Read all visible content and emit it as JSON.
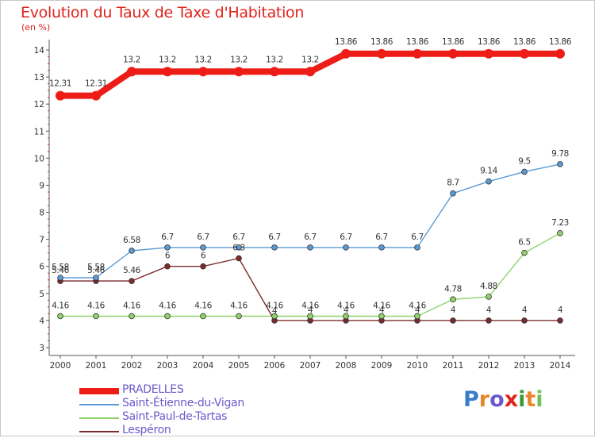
{
  "title": "Evolution du Taux de Taxe d'Habitation",
  "unit": "(en %)",
  "brand": {
    "text": "Proxiti",
    "colors": [
      "#3a7cc9",
      "#e8862b",
      "#6a5acd",
      "#e0231c",
      "#3a9a3a",
      "#e8862b",
      "#6fc05a"
    ]
  },
  "chart_data": {
    "type": "line",
    "x": [
      2000,
      2001,
      2002,
      2003,
      2004,
      2005,
      2006,
      2007,
      2008,
      2009,
      2010,
      2011,
      2012,
      2013,
      2014
    ],
    "ylim": [
      3,
      14
    ],
    "yticks": [
      3,
      4,
      5,
      6,
      7,
      8,
      9,
      10,
      11,
      12,
      13,
      14
    ],
    "grid": false,
    "legend": "bottom-left",
    "series": [
      {
        "name": "PRADELLES",
        "color": "#ee1c16",
        "values": [
          12.31,
          12.31,
          13.2,
          13.2,
          13.2,
          13.2,
          13.2,
          13.2,
          13.86,
          13.86,
          13.86,
          13.86,
          13.86,
          13.86,
          13.86
        ],
        "labels": [
          "12.31",
          "12.31",
          "13.2",
          "13.2",
          "13.2",
          "13.2",
          "13.2",
          "13.2",
          "13.86",
          "13.86",
          "13.86",
          "13.86",
          "13.86",
          "13.86",
          "13.86"
        ]
      },
      {
        "name": "Saint-Étienne-du-Vigan",
        "color": "#5b9bd5",
        "values": [
          5.58,
          5.58,
          6.58,
          6.7,
          6.7,
          6.7,
          6.7,
          6.7,
          6.7,
          6.7,
          6.7,
          8.7,
          9.14,
          9.5,
          9.78
        ],
        "labels": [
          "5.58",
          "5.58",
          "6.58",
          "6.7",
          "6.7",
          "6.7",
          "6.7",
          "6.7",
          "6.7",
          "6.7",
          "6.7",
          "8.7",
          "9.14",
          "9.5",
          "9.78"
        ]
      },
      {
        "name": "Saint-Paul-de-Tartas",
        "color": "#8ed36b",
        "values": [
          4.16,
          4.16,
          4.16,
          4.16,
          4.16,
          4.16,
          4.16,
          4.16,
          4.16,
          4.16,
          4.16,
          4.78,
          4.88,
          6.5,
          7.23
        ],
        "labels": [
          "4.16",
          "4.16",
          "4.16",
          "4.16",
          "4.16",
          "4.16",
          "4.16",
          "4.16",
          "4.16",
          "4.16",
          "4.16",
          "4.78",
          "4.88",
          "6.5",
          "7.23"
        ]
      },
      {
        "name": "Lespéron",
        "color": "#7b2b2b",
        "values": [
          5.46,
          5.46,
          5.46,
          6,
          6,
          6.3,
          4,
          4,
          4,
          4,
          4,
          4,
          4,
          4,
          4
        ],
        "labels": [
          "5.46",
          "5.46",
          "5.46",
          "6",
          "6",
          "6.3",
          "4",
          "4",
          "4",
          "4",
          "4",
          "4",
          "4",
          "4",
          "4"
        ]
      }
    ]
  }
}
